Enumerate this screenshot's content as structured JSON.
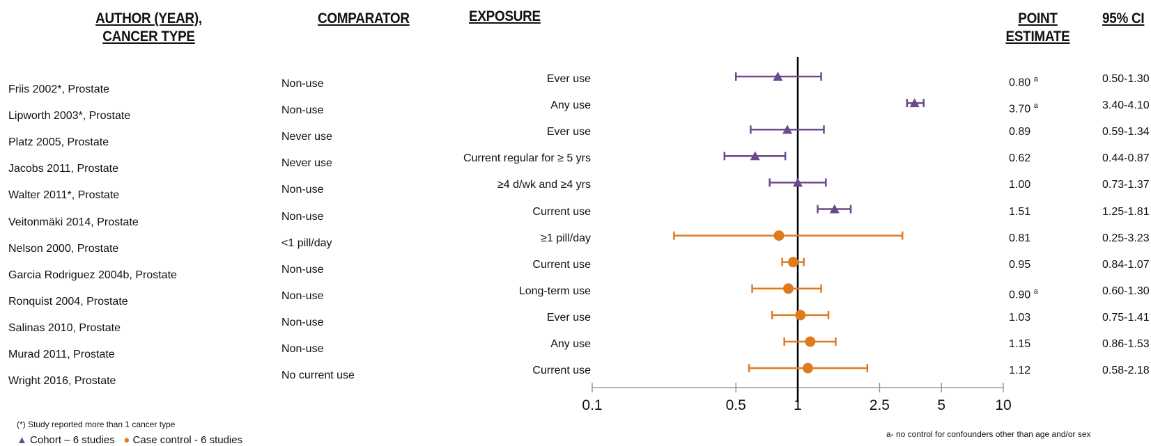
{
  "headers": {
    "author_line1": "AUTHOR (YEAR),",
    "author_line2": "CANCER TYPE",
    "comparator": "COMPARATOR",
    "exposure": "EXPOSURE",
    "point_line1": "POINT",
    "point_line2": "ESTIMATE",
    "ci": "95% CI"
  },
  "rows": [
    {
      "author": "Friis 2002*, Prostate",
      "comparator": "Non-use",
      "exposure": "Ever use",
      "estimate": "0.80",
      "note": "a",
      "ci": "0.50-1.30"
    },
    {
      "author": "Lipworth 2003*, Prostate",
      "comparator": "Non-use",
      "exposure": "Any use",
      "estimate": "3.70",
      "note": "a",
      "ci": "3.40-4.10"
    },
    {
      "author": "Platz 2005, Prostate",
      "comparator": "Never use",
      "exposure": "Ever use",
      "estimate": "0.89",
      "note": "",
      "ci": "0.59-1.34"
    },
    {
      "author": "Jacobs 2011, Prostate",
      "comparator": "Never use",
      "exposure": "Current regular for ≥ 5 yrs",
      "estimate": "0.62",
      "note": "",
      "ci": "0.44-0.87"
    },
    {
      "author": "Walter 2011*, Prostate",
      "comparator": "Non-use",
      "exposure": "≥4 d/wk and ≥4 yrs",
      "estimate": "1.00",
      "note": "",
      "ci": "0.73-1.37"
    },
    {
      "author": "Veitonmäki 2014, Prostate",
      "comparator": "Non-use",
      "exposure": "Current use",
      "estimate": "1.51",
      "note": "",
      "ci": "1.25-1.81"
    },
    {
      "author": "Nelson 2000, Prostate",
      "comparator": "<1 pill/day",
      "exposure": "≥1 pill/day",
      "estimate": "0.81",
      "note": "",
      "ci": "0.25-3.23"
    },
    {
      "author": "Garcia Rodriguez 2004b, Prostate",
      "comparator": "Non-use",
      "exposure": "Current use",
      "estimate": "0.95",
      "note": "",
      "ci": "0.84-1.07"
    },
    {
      "author": "Ronquist 2004, Prostate",
      "comparator": "Non-use",
      "exposure": "Long-term use",
      "estimate": "0.90",
      "note": "a",
      "ci": "0.60-1.30"
    },
    {
      "author": "Salinas 2010, Prostate",
      "comparator": "Non-use",
      "exposure": "Ever use",
      "estimate": "1.03",
      "note": "",
      "ci": "0.75-1.41"
    },
    {
      "author": "Murad 2011, Prostate",
      "comparator": "Non-use",
      "exposure": "Any use",
      "estimate": "1.15",
      "note": "",
      "ci": "0.86-1.53"
    },
    {
      "author": "Wright 2016, Prostate",
      "comparator": "No current use",
      "exposure": "Current use",
      "estimate": "1.12",
      "note": "",
      "ci": "0.58-2.18"
    }
  ],
  "footnote_star": "(*) Study reported more than 1 cancer type",
  "footnote_a": "a- no control for confounders other than age and/or sex",
  "legend": {
    "cohort_symbol": "▲",
    "cohort_label": "Cohort – 6 studies",
    "case_symbol": "●",
    "case_label": "Case control - 6 studies"
  },
  "colors": {
    "cohort": "#6a4a8c",
    "case_control": "#e07a1f",
    "axis": "#999999",
    "ref_line": "#000000"
  },
  "chart_data": {
    "type": "forest",
    "scale": "log",
    "xlim": [
      0.1,
      10
    ],
    "x_ticks": [
      "0.1",
      "0.5",
      "1",
      "2.5",
      "5",
      "10"
    ],
    "x_tick_values": [
      0.1,
      0.5,
      1,
      2.5,
      5,
      10
    ],
    "reference_value": 1,
    "points": [
      {
        "est": 0.8,
        "lo": 0.5,
        "hi": 1.3,
        "group": "cohort"
      },
      {
        "est": 3.7,
        "lo": 3.4,
        "hi": 4.1,
        "group": "cohort"
      },
      {
        "est": 0.89,
        "lo": 0.59,
        "hi": 1.34,
        "group": "cohort"
      },
      {
        "est": 0.62,
        "lo": 0.44,
        "hi": 0.87,
        "group": "cohort"
      },
      {
        "est": 1.0,
        "lo": 0.73,
        "hi": 1.37,
        "group": "cohort"
      },
      {
        "est": 1.51,
        "lo": 1.25,
        "hi": 1.81,
        "group": "cohort"
      },
      {
        "est": 0.81,
        "lo": 0.25,
        "hi": 3.23,
        "group": "case_control"
      },
      {
        "est": 0.95,
        "lo": 0.84,
        "hi": 1.07,
        "group": "case_control"
      },
      {
        "est": 0.9,
        "lo": 0.6,
        "hi": 1.3,
        "group": "case_control"
      },
      {
        "est": 1.03,
        "lo": 0.75,
        "hi": 1.41,
        "group": "case_control"
      },
      {
        "est": 1.15,
        "lo": 0.86,
        "hi": 1.53,
        "group": "case_control"
      },
      {
        "est": 1.12,
        "lo": 0.58,
        "hi": 2.18,
        "group": "case_control"
      }
    ]
  }
}
